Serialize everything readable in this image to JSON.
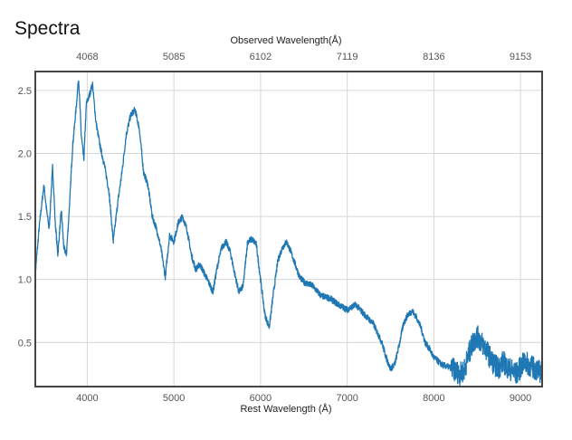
{
  "page": {
    "title": "Spectra"
  },
  "chart_data": {
    "type": "line",
    "title": "Spectra",
    "xlabel": "Rest Wavelength (Å)",
    "x2label": "Observed Wavelength(Å)",
    "xlim": [
      3400,
      9250
    ],
    "ylim": [
      0.15,
      2.65
    ],
    "grid": true,
    "x_ticks": [
      4000,
      5000,
      6000,
      7000,
      8000,
      9000
    ],
    "x_tick_labels": [
      "4000",
      "5000",
      "6000",
      "7000",
      "8000",
      "9000"
    ],
    "x2_tick_labels": [
      "4068",
      "5085",
      "6102",
      "7119",
      "8136",
      "9153"
    ],
    "y_ticks": [
      0.5,
      1.0,
      1.5,
      2.0,
      2.5
    ],
    "y_tick_labels": [
      "0.5",
      "1.0",
      "1.5",
      "2.0",
      "2.5"
    ],
    "line_color": "#1f77b4",
    "series": [
      {
        "x": [
          3400,
          3450,
          3500,
          3530,
          3560,
          3600,
          3630,
          3660,
          3700,
          3730,
          3760,
          3800,
          3830,
          3870,
          3900,
          3930,
          3960,
          3990,
          4020,
          4060,
          4100,
          4150,
          4200,
          4250,
          4300,
          4350,
          4400,
          4450,
          4500,
          4550,
          4600,
          4650,
          4700,
          4750,
          4800,
          4850,
          4900,
          4950,
          5000,
          5050,
          5100,
          5150,
          5200,
          5250,
          5300,
          5350,
          5400,
          5450,
          5500,
          5550,
          5600,
          5650,
          5700,
          5750,
          5800,
          5850,
          5900,
          5950,
          6000,
          6050,
          6100,
          6150,
          6200,
          6250,
          6300,
          6350,
          6400,
          6450,
          6500,
          6600,
          6700,
          6800,
          6900,
          7000,
          7100,
          7200,
          7300,
          7400,
          7450,
          7500,
          7550,
          7600,
          7650,
          7700,
          7750,
          7800,
          7850,
          7900,
          7950,
          8000,
          8100,
          8200,
          8300,
          8350,
          8400,
          8450,
          8500,
          8550,
          8600,
          8650,
          8700,
          8750,
          8800,
          8850,
          8900,
          8950,
          9000,
          9050,
          9100,
          9150,
          9200,
          9250
        ],
        "y": [
          1.05,
          1.45,
          1.75,
          1.55,
          1.4,
          1.9,
          1.45,
          1.2,
          1.55,
          1.25,
          1.2,
          1.65,
          2.05,
          2.35,
          2.6,
          2.15,
          1.95,
          2.4,
          2.45,
          2.55,
          2.25,
          2.05,
          1.9,
          1.7,
          1.3,
          1.6,
          1.85,
          2.15,
          2.3,
          2.35,
          2.2,
          1.85,
          1.75,
          1.5,
          1.4,
          1.25,
          1.02,
          1.35,
          1.3,
          1.45,
          1.5,
          1.4,
          1.2,
          1.08,
          1.12,
          1.05,
          0.98,
          0.9,
          1.1,
          1.25,
          1.3,
          1.22,
          1.05,
          0.9,
          0.95,
          1.3,
          1.32,
          1.28,
          1.0,
          0.72,
          0.62,
          0.9,
          1.15,
          1.25,
          1.3,
          1.22,
          1.12,
          1.02,
          0.98,
          0.95,
          0.87,
          0.85,
          0.8,
          0.76,
          0.8,
          0.72,
          0.65,
          0.5,
          0.38,
          0.29,
          0.33,
          0.48,
          0.65,
          0.72,
          0.75,
          0.7,
          0.62,
          0.5,
          0.45,
          0.38,
          0.32,
          0.3,
          0.25,
          0.28,
          0.4,
          0.5,
          0.55,
          0.5,
          0.45,
          0.38,
          0.32,
          0.3,
          0.35,
          0.3,
          0.28,
          0.25,
          0.3,
          0.35,
          0.32,
          0.3,
          0.28,
          0.26
        ]
      }
    ]
  }
}
